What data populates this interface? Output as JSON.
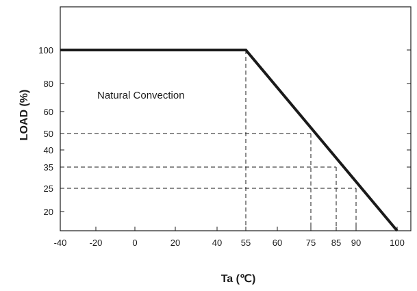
{
  "chart_data": {
    "type": "line",
    "xlabel": "Ta (℃)",
    "ylabel": "LOAD (%)",
    "x_ticks": [
      "-40",
      "-20",
      "0",
      "20",
      "40",
      "55",
      "60",
      "75",
      "85",
      "90",
      "100"
    ],
    "y_ticks": [
      "100",
      "80",
      "60",
      "50",
      "40",
      "35",
      "25",
      "20"
    ],
    "series": [
      {
        "values": [
          {
            "x": -40,
            "y": 100
          },
          {
            "x": 55,
            "y": 100
          },
          {
            "x": 100,
            "y": 15
          }
        ]
      }
    ],
    "annotations": [
      {
        "text": "Natural Convection"
      }
    ],
    "reference_points": [
      {
        "x": 55,
        "y": 100
      },
      {
        "x": 75,
        "y": 50
      },
      {
        "x": 85,
        "y": 35
      },
      {
        "x": 90,
        "y": 25
      }
    ],
    "grid": false,
    "legend": "none"
  }
}
